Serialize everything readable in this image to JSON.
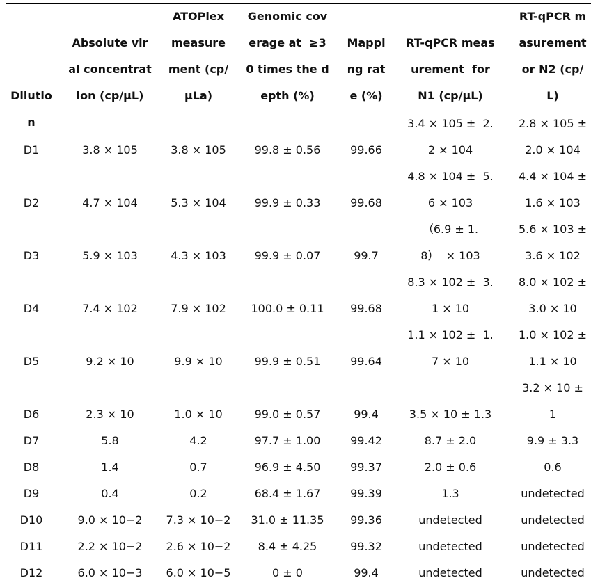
{
  "headers": [
    [
      "",
      "",
      "",
      "Dilutio",
      "n"
    ],
    [
      "",
      "Absolute vir",
      "al concentrat",
      "ion (cp/μL)",
      ""
    ],
    [
      "ATOPlex",
      "measure",
      "ment (cp/",
      "μLa)",
      ""
    ],
    [
      "Genomic cov",
      "erage at  ≥3",
      "0 times the d",
      "epth (%)",
      ""
    ],
    [
      "",
      "Mappi",
      "ng rat",
      "e (%)",
      ""
    ],
    [
      "",
      "RT-qPCR meas",
      "urement  for",
      "N1 (cp/μL)",
      ""
    ],
    [
      "RT-qPCR m",
      "asurement",
      "or N2 (cp/",
      "L)",
      ""
    ]
  ],
  "rows": [
    {
      "dilution": "D1",
      "absolute": "3.8 × 105",
      "atoplex": "3.8 × 105",
      "coverage": "99.8 ± 0.56",
      "mapping": "99.66",
      "n1": [
        "3.4 × 105 ±  2.",
        "2 × 104"
      ],
      "n2": [
        "2.8 × 105 ±",
        "2.0 × 104"
      ]
    },
    {
      "dilution": "D2",
      "absolute": "4.7 × 104",
      "atoplex": "5.3 × 104",
      "coverage": "99.9 ± 0.33",
      "mapping": "99.68",
      "n1": [
        "4.8 × 104 ±  5.",
        "6 × 103"
      ],
      "n2": [
        "4.4 × 104 ±",
        "1.6 × 103"
      ]
    },
    {
      "dilution": "D3",
      "absolute": "5.9 × 103",
      "atoplex": "4.3 × 103",
      "coverage": "99.9 ± 0.07",
      "mapping": "99.7",
      "n1": [
        "（6.9 ± 1.",
        "8）  × 103"
      ],
      "n2": [
        "5.6 × 103 ±",
        "3.6 × 102"
      ]
    },
    {
      "dilution": "D4",
      "absolute": "7.4 × 102",
      "atoplex": "7.9 × 102",
      "coverage": "100.0 ± 0.11",
      "mapping": "99.68",
      "n1": [
        "8.3 × 102 ±  3.",
        "1 × 10"
      ],
      "n2": [
        "8.0 × 102 ±",
        "3.0 × 10"
      ]
    },
    {
      "dilution": "D5",
      "absolute": "9.2 × 10",
      "atoplex": "9.9 × 10",
      "coverage": "99.9 ± 0.51",
      "mapping": "99.64",
      "n1": [
        "1.1 × 102 ±  1.",
        "7 × 10"
      ],
      "n2": [
        "1.0 × 102 ±",
        "1.1 × 10"
      ]
    },
    {
      "dilution": "D6",
      "absolute": "2.3 × 10",
      "atoplex": "1.0 × 10",
      "coverage": "99.0 ± 0.57",
      "mapping": "99.4",
      "n1": [
        "",
        "3.5 × 10 ± 1.3"
      ],
      "n2": [
        "3.2 × 10 ±",
        "1"
      ]
    },
    {
      "dilution": "D7",
      "absolute": "5.8",
      "atoplex": "4.2",
      "coverage": "97.7 ± 1.00",
      "mapping": "99.42",
      "n1": [
        "8.7 ± 2.0"
      ],
      "n2": [
        "9.9 ± 3.3"
      ]
    },
    {
      "dilution": "D8",
      "absolute": "1.4",
      "atoplex": "0.7",
      "coverage": "96.9 ± 4.50",
      "mapping": "99.37",
      "n1": [
        "2.0 ± 0.6"
      ],
      "n2": [
        "0.6"
      ]
    },
    {
      "dilution": "D9",
      "absolute": "0.4",
      "atoplex": "0.2",
      "coverage": "68.4 ± 1.67",
      "mapping": "99.39",
      "n1": [
        "1.3"
      ],
      "n2": [
        "undetected"
      ]
    },
    {
      "dilution": "D10",
      "absolute": "9.0 × 10−2",
      "atoplex": "7.3 × 10−2",
      "coverage": "31.0 ± 11.35",
      "mapping": "99.36",
      "n1": [
        "undetected"
      ],
      "n2": [
        "undetected"
      ]
    },
    {
      "dilution": "D11",
      "absolute": "2.2 × 10−2",
      "atoplex": "2.6 × 10−2",
      "coverage": "8.4 ± 4.25",
      "mapping": "99.32",
      "n1": [
        "undetected"
      ],
      "n2": [
        "undetected"
      ]
    },
    {
      "dilution": "D12",
      "absolute": "6.0 × 10−3",
      "atoplex": "6.0 × 10−5",
      "coverage": "0 ± 0",
      "mapping": "99.4",
      "n1": [
        "undetected"
      ],
      "n2": [
        "undetected"
      ]
    }
  ]
}
